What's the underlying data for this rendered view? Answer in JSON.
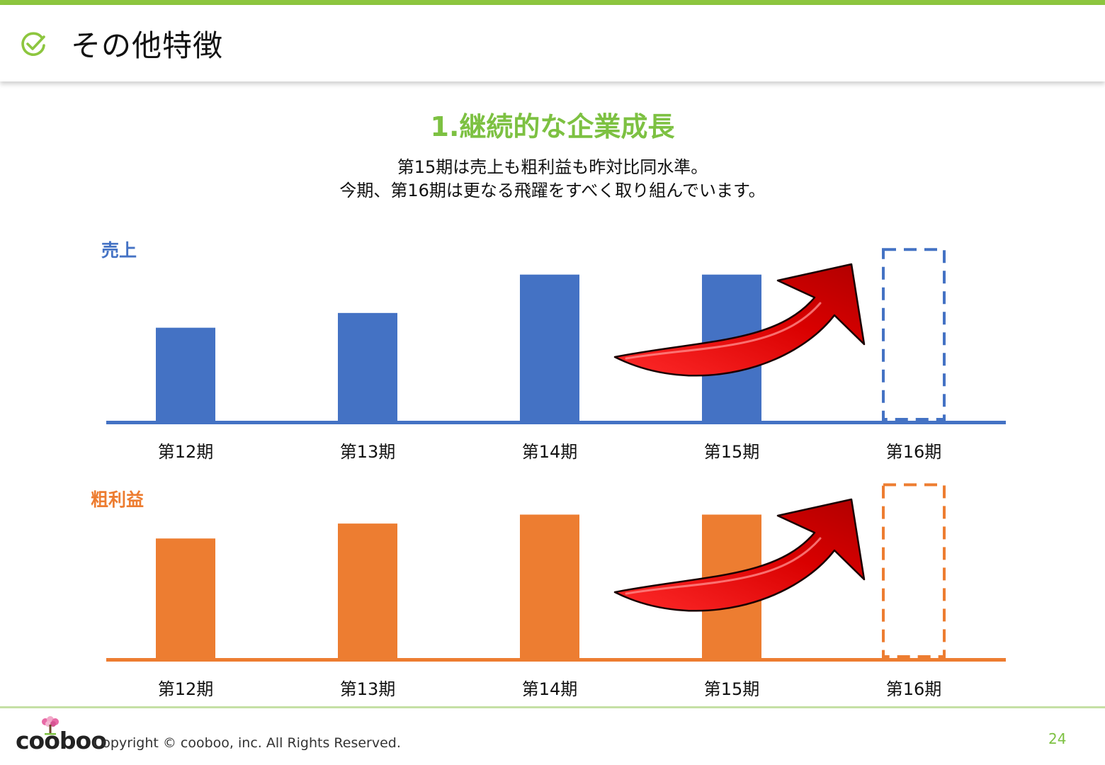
{
  "header": {
    "title": "その他特徴",
    "icon": "check-circle-icon",
    "accent_color": "#8dc63f"
  },
  "section": {
    "title": "1.継続的な企業成長",
    "subtitle_line1": "第15期は売上も粗利益も昨対比同水準。",
    "subtitle_line2": "今期、第16期は更なる飛躍をすべく取り組んでいます。"
  },
  "chart_data": [
    {
      "type": "bar",
      "title": "売上",
      "categories": [
        "第12期",
        "第13期",
        "第14期",
        "第15期",
        "第16期"
      ],
      "values": [
        64,
        74,
        100,
        100,
        null
      ],
      "projected_category": "第16期",
      "projected_value": 117,
      "color": "#4472c4",
      "ylim": [
        0,
        120
      ],
      "grid": false,
      "annotation": "upward-arrow"
    },
    {
      "type": "bar",
      "title": "粗利益",
      "categories": [
        "第12期",
        "第13期",
        "第14期",
        "第15期",
        "第16期"
      ],
      "values": [
        81,
        91,
        97,
        97,
        null
      ],
      "projected_category": "第16期",
      "projected_value": 117,
      "color": "#ed7d31",
      "ylim": [
        0,
        120
      ],
      "grid": false,
      "annotation": "upward-arrow"
    }
  ],
  "footer": {
    "logo": "cooboo",
    "copyright": "Copyright ©  cooboo, inc. All Rights Reserved.",
    "page_number": "24"
  }
}
